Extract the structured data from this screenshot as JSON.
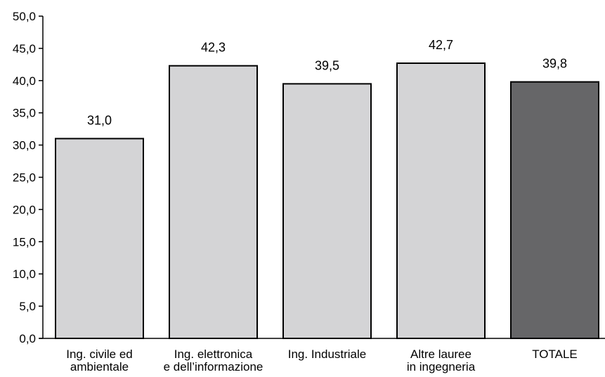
{
  "chart_data": {
    "type": "bar",
    "title": "",
    "xlabel": "",
    "ylabel": "",
    "ylim": [
      0,
      50
    ],
    "yticks": [
      "0,0",
      "5,0",
      "10,0",
      "15,0",
      "20,0",
      "25,0",
      "30,0",
      "35,0",
      "40,0",
      "45,0",
      "50,0"
    ],
    "grid": false,
    "categories": [
      [
        "Ing. civile ed",
        "ambientale"
      ],
      [
        "Ing. elettronica",
        "e dell’informazione"
      ],
      [
        "Ing. Industriale"
      ],
      [
        "Altre lauree",
        "in ingegneria"
      ],
      [
        "TOTALE"
      ]
    ],
    "values": [
      31.0,
      42.3,
      39.5,
      42.7,
      39.8
    ],
    "data_labels": [
      "31,0",
      "42,3",
      "39,5",
      "42,7",
      "39,8"
    ],
    "colors": {
      "bar": "#d4d4d6",
      "bar_highlight": "#666668",
      "stroke": "#000000"
    },
    "highlight_index": 4
  }
}
